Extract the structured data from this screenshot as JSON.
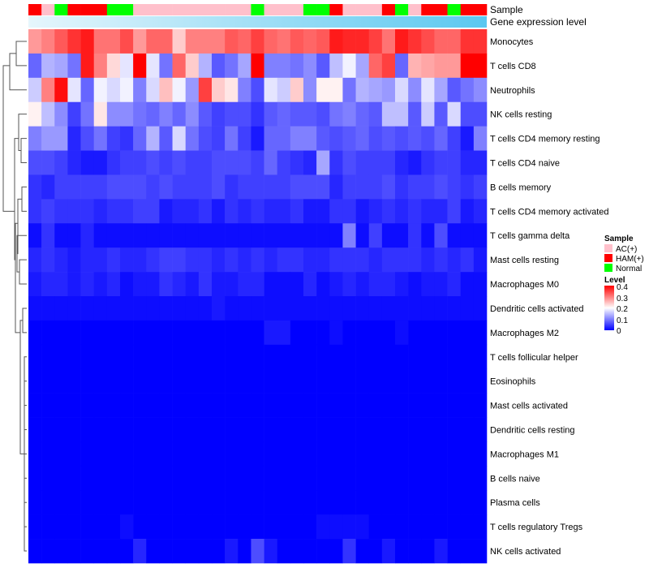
{
  "chart_data": {
    "type": "heatmap",
    "title": "",
    "annotation_labels": [
      "Sample",
      "Gene expression level"
    ],
    "rows": [
      "Monocytes",
      "T cells CD8",
      "Neutrophils",
      "NK cells resting",
      "T cells CD4 memory resting",
      "T cells CD4 naive",
      "B cells memory",
      "T cells CD4 memory activated",
      "T cells gamma delta",
      "Mast cells resting",
      "Macrophages M0",
      "Dendritic cells activated",
      "Macrophages M2",
      "T cells follicular helper",
      "Eosinophils",
      "Mast cells activated",
      "Dendritic cells resting",
      "Macrophages M1",
      "B cells naive",
      "Plasma cells",
      "T cells regulatory  Tregs",
      "NK cells activated"
    ],
    "sample_groups": [
      "HAM(+)",
      "AC(+)",
      "Normal",
      "HAM(+)",
      "HAM(+)",
      "HAM(+)",
      "Normal",
      "Normal",
      "AC(+)",
      "AC(+)",
      "AC(+)",
      "AC(+)",
      "AC(+)",
      "AC(+)",
      "AC(+)",
      "AC(+)",
      "AC(+)",
      "Normal",
      "AC(+)",
      "AC(+)",
      "AC(+)",
      "Normal",
      "Normal",
      "HAM(+)",
      "AC(+)",
      "AC(+)",
      "AC(+)",
      "HAM(+)",
      "Normal",
      "AC(+)",
      "HAM(+)",
      "HAM(+)",
      "Normal",
      "HAM(+)",
      "HAM(+)"
    ],
    "values": [
      [
        0.28,
        0.3,
        0.33,
        0.36,
        0.38,
        0.31,
        0.31,
        0.34,
        0.28,
        0.32,
        0.32,
        0.24,
        0.3,
        0.3,
        0.3,
        0.33,
        0.32,
        0.35,
        0.32,
        0.31,
        0.33,
        0.32,
        0.33,
        0.38,
        0.37,
        0.37,
        0.35,
        0.31,
        0.38,
        0.36,
        0.34,
        0.32,
        0.32,
        0.36,
        0.36
      ],
      [
        0.08,
        0.14,
        0.13,
        0.09,
        0.38,
        0.3,
        0.23,
        0.18,
        0.4,
        0.18,
        0.09,
        0.32,
        0.24,
        0.14,
        0.07,
        0.09,
        0.13,
        0.4,
        0.1,
        0.1,
        0.09,
        0.11,
        0.07,
        0.15,
        0.19,
        0.13,
        0.32,
        0.35,
        0.08,
        0.26,
        0.27,
        0.28,
        0.28,
        0.4,
        0.4
      ],
      [
        0.16,
        0.3,
        0.39,
        0.18,
        0.08,
        0.19,
        0.17,
        0.19,
        0.1,
        0.17,
        0.25,
        0.19,
        0.12,
        0.35,
        0.24,
        0.22,
        0.1,
        0.06,
        0.18,
        0.16,
        0.24,
        0.11,
        0.21,
        0.21,
        0.09,
        0.14,
        0.13,
        0.12,
        0.17,
        0.11,
        0.18,
        0.13,
        0.07,
        0.09,
        0.11
      ],
      [
        0.21,
        0.15,
        0.11,
        0.05,
        0.09,
        0.22,
        0.11,
        0.11,
        0.09,
        0.08,
        0.1,
        0.08,
        0.11,
        0.07,
        0.05,
        0.06,
        0.06,
        0.04,
        0.07,
        0.08,
        0.07,
        0.07,
        0.06,
        0.09,
        0.1,
        0.08,
        0.07,
        0.15,
        0.15,
        0.07,
        0.16,
        0.07,
        0.17,
        0.06,
        0.06
      ],
      [
        0.1,
        0.12,
        0.12,
        0.03,
        0.06,
        0.09,
        0.05,
        0.04,
        0.08,
        0.14,
        0.07,
        0.17,
        0.09,
        0.06,
        0.05,
        0.09,
        0.05,
        0.02,
        0.08,
        0.08,
        0.1,
        0.1,
        0.07,
        0.06,
        0.07,
        0.08,
        0.06,
        0.07,
        0.06,
        0.07,
        0.06,
        0.08,
        0.05,
        0.02,
        0.1
      ],
      [
        0.06,
        0.06,
        0.05,
        0.03,
        0.02,
        0.02,
        0.04,
        0.05,
        0.05,
        0.06,
        0.05,
        0.06,
        0.05,
        0.05,
        0.06,
        0.06,
        0.06,
        0.05,
        0.08,
        0.05,
        0.04,
        0.03,
        0.13,
        0.04,
        0.06,
        0.05,
        0.05,
        0.05,
        0.03,
        0.02,
        0.04,
        0.05,
        0.05,
        0.03,
        0.03
      ],
      [
        0.04,
        0.03,
        0.05,
        0.05,
        0.05,
        0.05,
        0.06,
        0.06,
        0.06,
        0.05,
        0.06,
        0.05,
        0.05,
        0.05,
        0.06,
        0.04,
        0.05,
        0.05,
        0.05,
        0.05,
        0.06,
        0.06,
        0.06,
        0.03,
        0.05,
        0.05,
        0.05,
        0.06,
        0.04,
        0.05,
        0.05,
        0.06,
        0.05,
        0.04,
        0.05
      ],
      [
        0.04,
        0.05,
        0.04,
        0.04,
        0.04,
        0.03,
        0.04,
        0.04,
        0.05,
        0.05,
        0.02,
        0.03,
        0.03,
        0.04,
        0.02,
        0.04,
        0.03,
        0.04,
        0.03,
        0.03,
        0.04,
        0.02,
        0.02,
        0.04,
        0.04,
        0.02,
        0.03,
        0.04,
        0.03,
        0.04,
        0.03,
        0.03,
        0.05,
        0.02,
        0.03
      ],
      [
        0.01,
        0.04,
        0.01,
        0.01,
        0.03,
        0.01,
        0.01,
        0.01,
        0.01,
        0.01,
        0.01,
        0.01,
        0.01,
        0.01,
        0.01,
        0.01,
        0.01,
        0.01,
        0.01,
        0.01,
        0.01,
        0.01,
        0.01,
        0.01,
        0.1,
        0.01,
        0.05,
        0.01,
        0.01,
        0.04,
        0.01,
        0.06,
        0.01,
        0.01,
        0.01
      ],
      [
        0.03,
        0.04,
        0.03,
        0.02,
        0.03,
        0.03,
        0.04,
        0.03,
        0.03,
        0.04,
        0.05,
        0.05,
        0.04,
        0.04,
        0.03,
        0.04,
        0.03,
        0.04,
        0.03,
        0.04,
        0.04,
        0.03,
        0.03,
        0.04,
        0.04,
        0.04,
        0.03,
        0.04,
        0.04,
        0.04,
        0.03,
        0.04,
        0.03,
        0.04,
        0.02
      ],
      [
        0.02,
        0.03,
        0.03,
        0.02,
        0.03,
        0.02,
        0.03,
        0.01,
        0.02,
        0.02,
        0.04,
        0.03,
        0.02,
        0.04,
        0.02,
        0.02,
        0.03,
        0.03,
        0.01,
        0.01,
        0.01,
        0.03,
        0.01,
        0.02,
        0.03,
        0.02,
        0.03,
        0.03,
        0.02,
        0.01,
        0.02,
        0.02,
        0.03,
        0.01,
        0.01
      ],
      [
        0.01,
        0.01,
        0.01,
        0.01,
        0.01,
        0.01,
        0.01,
        0.01,
        0.01,
        0.01,
        0.01,
        0.01,
        0.01,
        0.01,
        0.02,
        0.01,
        0.01,
        0.01,
        0.01,
        0.01,
        0.01,
        0.01,
        0.01,
        0.01,
        0.01,
        0.01,
        0.01,
        0.01,
        0.01,
        0.01,
        0.01,
        0.01,
        0.01,
        0.01,
        0.01
      ],
      [
        0.0,
        0.0,
        0.0,
        0.0,
        0.0,
        0.0,
        0.0,
        0.0,
        0.0,
        0.0,
        0.0,
        0.0,
        0.0,
        0.0,
        0.0,
        0.0,
        0.0,
        0.0,
        0.02,
        0.02,
        0.0,
        0.0,
        0.0,
        0.01,
        0.0,
        0.0,
        0.0,
        0.0,
        0.01,
        0.0,
        0.0,
        0.0,
        0.0,
        0.0,
        0.0
      ],
      [
        0,
        0,
        0,
        0,
        0,
        0,
        0,
        0,
        0,
        0,
        0,
        0,
        0,
        0,
        0,
        0,
        0,
        0,
        0,
        0,
        0,
        0,
        0,
        0,
        0,
        0,
        0,
        0,
        0,
        0,
        0,
        0,
        0,
        0,
        0
      ],
      [
        0,
        0,
        0,
        0,
        0,
        0,
        0,
        0,
        0,
        0,
        0,
        0,
        0,
        0,
        0,
        0,
        0,
        0,
        0,
        0,
        0,
        0,
        0,
        0,
        0,
        0,
        0,
        0,
        0,
        0,
        0,
        0,
        0,
        0,
        0
      ],
      [
        0,
        0,
        0,
        0,
        0,
        0,
        0,
        0,
        0,
        0,
        0,
        0,
        0,
        0,
        0,
        0,
        0,
        0,
        0,
        0,
        0,
        0,
        0,
        0,
        0,
        0,
        0,
        0,
        0,
        0,
        0,
        0,
        0,
        0,
        0
      ],
      [
        0,
        0,
        0,
        0,
        0,
        0,
        0,
        0,
        0,
        0,
        0,
        0,
        0,
        0,
        0,
        0,
        0,
        0,
        0,
        0,
        0,
        0,
        0,
        0,
        0,
        0,
        0,
        0,
        0,
        0,
        0,
        0,
        0,
        0,
        0
      ],
      [
        0,
        0,
        0,
        0,
        0,
        0,
        0,
        0,
        0,
        0,
        0,
        0,
        0,
        0,
        0,
        0,
        0,
        0,
        0,
        0,
        0,
        0,
        0,
        0,
        0,
        0,
        0,
        0,
        0,
        0,
        0,
        0,
        0,
        0,
        0
      ],
      [
        0,
        0,
        0,
        0,
        0,
        0,
        0,
        0,
        0,
        0,
        0,
        0,
        0,
        0,
        0,
        0,
        0,
        0,
        0,
        0,
        0,
        0,
        0,
        0,
        0,
        0,
        0,
        0,
        0,
        0,
        0,
        0,
        0,
        0,
        0
      ],
      [
        0,
        0,
        0,
        0,
        0,
        0,
        0,
        0,
        0,
        0,
        0,
        0,
        0,
        0,
        0,
        0,
        0,
        0,
        0,
        0,
        0,
        0,
        0,
        0,
        0,
        0,
        0,
        0,
        0,
        0,
        0,
        0,
        0,
        0,
        0
      ],
      [
        0.0,
        0.0,
        0.0,
        0.0,
        0.0,
        0.0,
        0.0,
        0.01,
        0.0,
        0.0,
        0.0,
        0.0,
        0.0,
        0.0,
        0.0,
        0.0,
        0.0,
        0.0,
        0.0,
        0.0,
        0.0,
        0.0,
        0.01,
        0.01,
        0.01,
        0.01,
        0.0,
        0.0,
        0.0,
        0.0,
        0.0,
        0.0,
        0.0,
        0.0,
        0.0
      ],
      [
        0.0,
        0.0,
        0.0,
        0.0,
        0.0,
        0.0,
        0.0,
        0.0,
        0.03,
        0.0,
        0.0,
        0.0,
        0.0,
        0.0,
        0.0,
        0.02,
        0.0,
        0.06,
        0.02,
        0.0,
        0.0,
        0.0,
        0.0,
        0.0,
        0.04,
        0.0,
        0.0,
        0.02,
        0.0,
        0.0,
        0.0,
        0.02,
        0.0,
        0.0,
        0.0
      ]
    ],
    "legend": {
      "sample_title": "Sample",
      "sample_items": [
        {
          "label": "AC(+)",
          "color": "#ffc0cb"
        },
        {
          "label": "HAM(+)",
          "color": "#ff0000"
        },
        {
          "label": "Normal",
          "color": "#00ff00"
        }
      ],
      "level_title": "Level",
      "level_ticks": [
        "0.4",
        "0.3",
        "0.2",
        "0.1",
        "0"
      ],
      "level_range": [
        0,
        0.4
      ],
      "placement": "right"
    },
    "colors": {
      "low": "#0000ff",
      "mid": "#ffffff",
      "high": "#ff0000",
      "mid_value": 0.2,
      "expression_bar_start": "#e6f6fc",
      "expression_bar_end": "#5bc8f0",
      "dendrogram": "#555555"
    }
  }
}
